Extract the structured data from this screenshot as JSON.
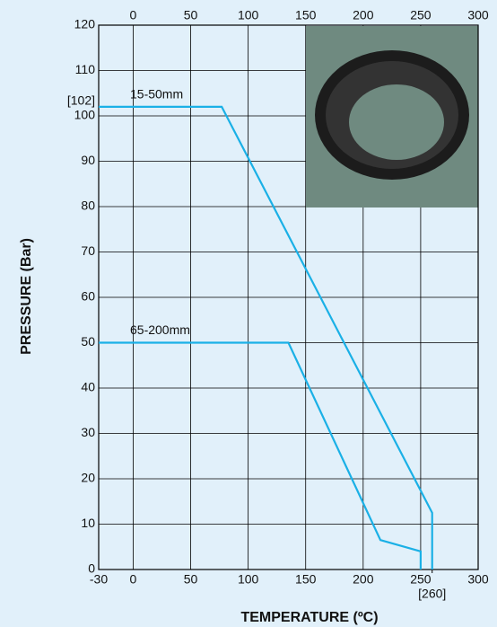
{
  "chart_data": {
    "type": "line",
    "xlabel": "TEMPERATURE (ºC)",
    "ylabel": "PRESSURE (Bar)",
    "xlim": [
      -30,
      300
    ],
    "ylim": [
      0,
      120
    ],
    "xticks": [
      -30,
      0,
      50,
      100,
      150,
      200,
      250,
      300,
      {
        "value": 260,
        "label": "[260]"
      }
    ],
    "xticks_top": [
      0,
      50,
      100,
      150,
      200,
      250,
      300
    ],
    "yticks": [
      0,
      10,
      20,
      30,
      40,
      50,
      60,
      70,
      80,
      90,
      100,
      110,
      120,
      {
        "value": 102,
        "label": "[102]"
      }
    ],
    "grid": true,
    "series": [
      {
        "name": "15-50mm",
        "color": "#1ab0e6",
        "x": [
          -30,
          77,
          260,
          260
        ],
        "values": [
          102,
          102,
          12.5,
          0
        ]
      },
      {
        "name": "65-200mm",
        "color": "#1ab0e6",
        "x": [
          -30,
          135,
          215,
          250,
          250
        ],
        "values": [
          50,
          50,
          6.5,
          4,
          0
        ]
      }
    ]
  }
}
